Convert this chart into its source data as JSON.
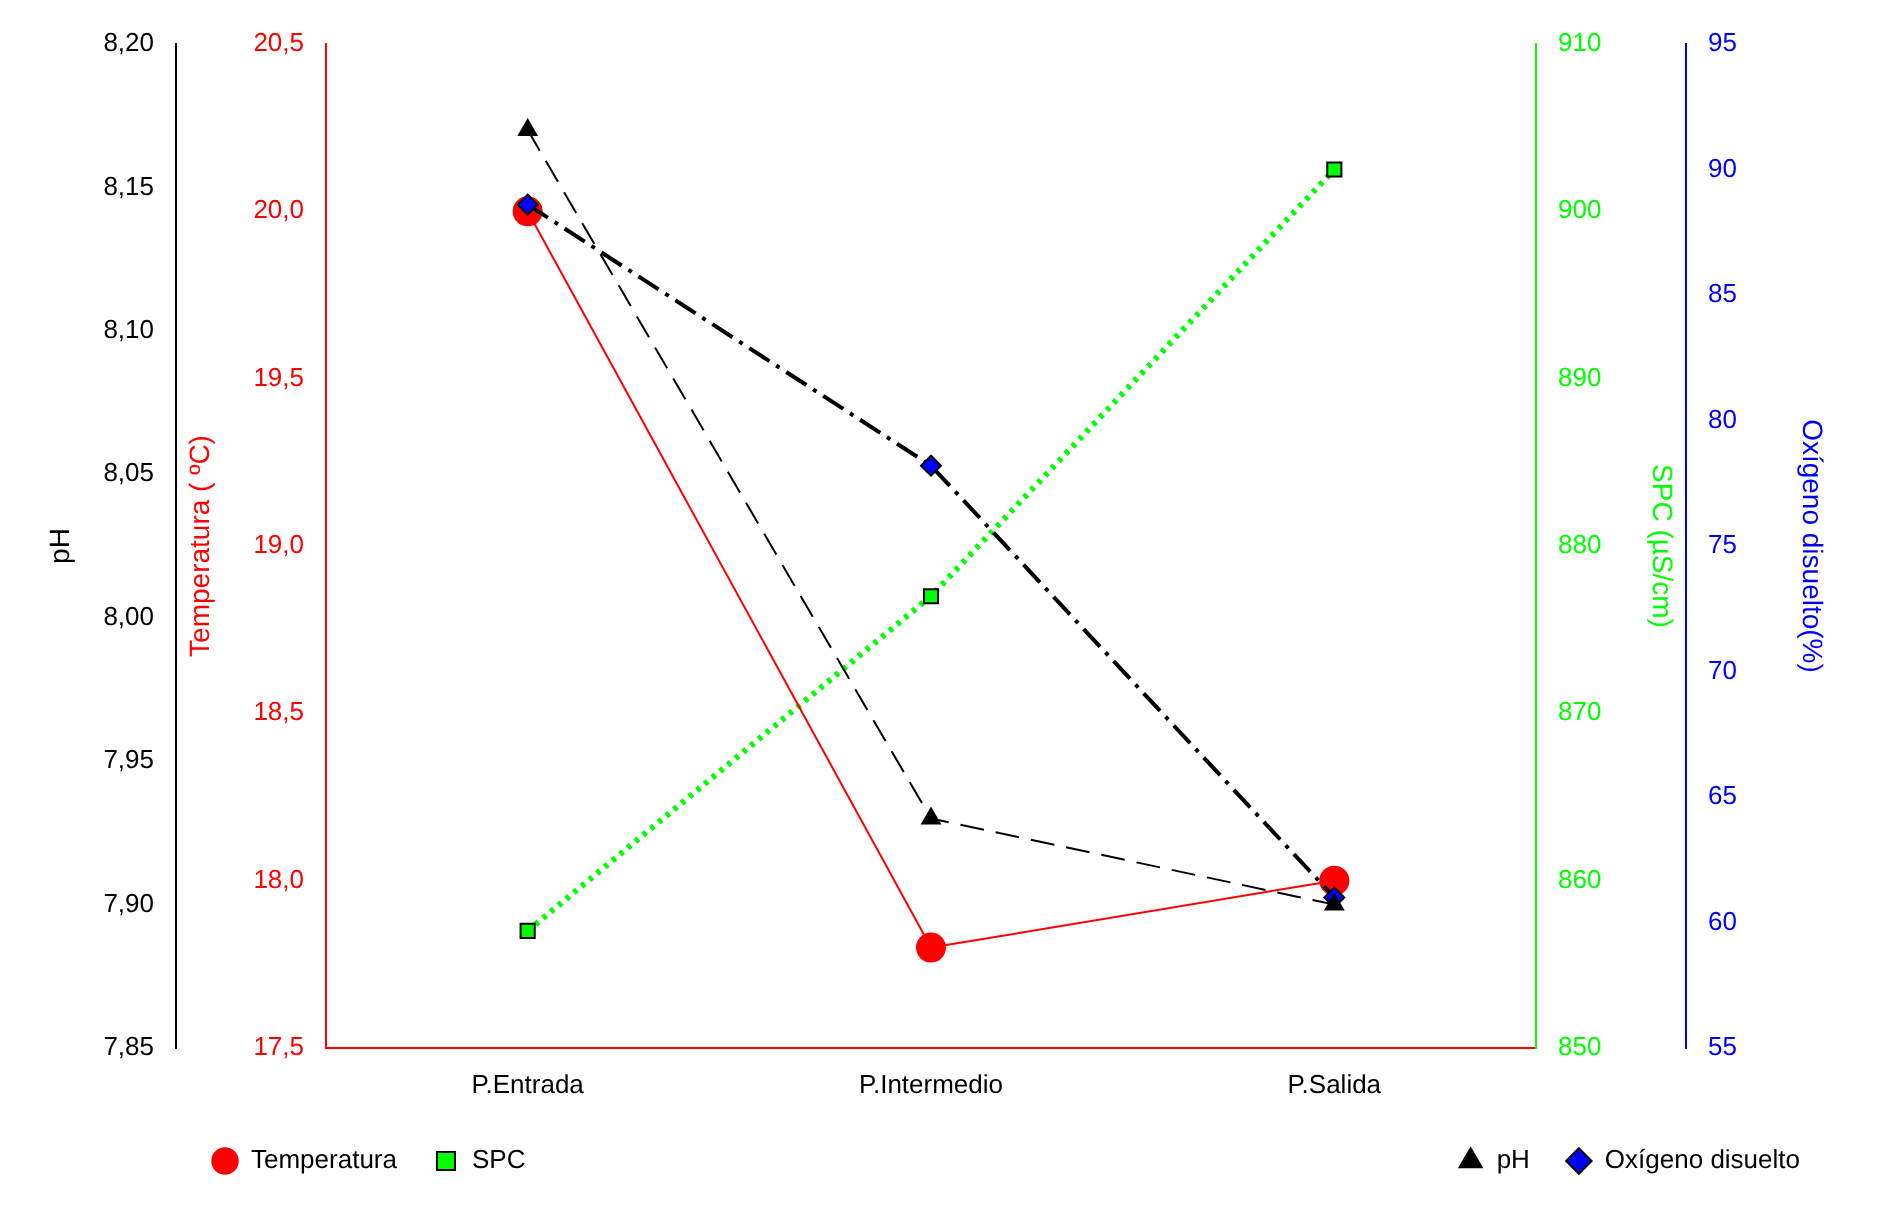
{
  "chart_data": [
    {
      "type": "line",
      "categories": [
        "P.Entrada",
        "P.Intermedio",
        "P.Salida"
      ],
      "ylabel": "Temperatura ( ºC)",
      "y2label": "SPC (µS/cm)",
      "ylim": [
        17.5,
        20.5
      ],
      "yticks": [
        {
          "value": 17.5,
          "label": "17,5"
        },
        {
          "value": 18.0,
          "label": "18,0"
        },
        {
          "value": 18.5,
          "label": "18,5"
        },
        {
          "value": 19.0,
          "label": "19,0"
        },
        {
          "value": 19.5,
          "label": "19,5"
        },
        {
          "value": 20.0,
          "label": "20,0"
        },
        {
          "value": 20.5,
          "label": "20,5"
        }
      ],
      "y2lim": [
        850,
        910
      ],
      "y2ticks": [
        850,
        860,
        870,
        880,
        890,
        900,
        910
      ],
      "series": [
        {
          "name": "Temperatura",
          "color": "#ff0000",
          "marker": "circle",
          "line_style": "solid",
          "values": [
            20.0,
            17.8,
            18.0
          ]
        },
        {
          "name": "SPC",
          "color": "#00ff00",
          "axis": "y2",
          "marker": "square",
          "line_style": "dotted",
          "values": [
            857,
            877,
            902.5
          ]
        }
      ],
      "grid": false,
      "legend": "bottom left"
    },
    {
      "type": "line",
      "categories": [
        null,
        null,
        null
      ],
      "ylabel": "pH",
      "y2label": "Oxígeno disuelto(%)",
      "ylim": [
        7.85,
        8.2
      ],
      "yticks": [
        {
          "value": 7.85,
          "label": "7,85"
        },
        {
          "value": 7.9,
          "label": "7,90"
        },
        {
          "value": 7.95,
          "label": "7,95"
        },
        {
          "value": 8.0,
          "label": "8,00"
        },
        {
          "value": 8.05,
          "label": "8,05"
        },
        {
          "value": 8.1,
          "label": "8,10"
        },
        {
          "value": 8.15,
          "label": "8,15"
        },
        {
          "value": 8.2,
          "label": "8,20"
        }
      ],
      "y2lim": [
        55,
        95
      ],
      "y2ticks": [
        55,
        60,
        65,
        70,
        75,
        80,
        85,
        90,
        95
      ],
      "series": [
        {
          "name": "pH",
          "color": "#000000",
          "marker": "triangle",
          "line_style": "dashed",
          "values": [
            8.17,
            7.93,
            7.9
          ]
        },
        {
          "name": "Oxígeno disuelto",
          "color": "#000000",
          "colors": [
            "#0000ff",
            "#0000ff",
            "#0000ff"
          ],
          "axis": "y2",
          "marker": "diamond",
          "line_style": "dashdot",
          "values": [
            88.6,
            78.2,
            61.0
          ]
        }
      ],
      "grid": false,
      "legend": "bottom right",
      "tick_labels": "y"
    }
  ]
}
